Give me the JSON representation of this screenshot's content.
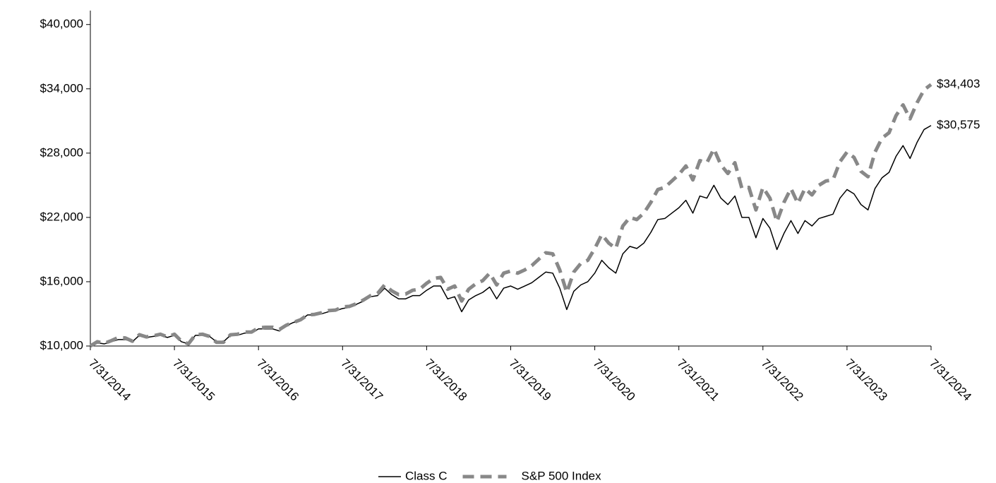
{
  "chart_data": {
    "type": "line",
    "categories": [
      "7/31/2014",
      null,
      null,
      null,
      null,
      null,
      null,
      null,
      null,
      null,
      null,
      null,
      "7/31/2015",
      null,
      null,
      null,
      null,
      null,
      null,
      null,
      null,
      null,
      null,
      null,
      "7/31/2016",
      null,
      null,
      null,
      null,
      null,
      null,
      null,
      null,
      null,
      null,
      null,
      "7/31/2017",
      null,
      null,
      null,
      null,
      null,
      null,
      null,
      null,
      null,
      null,
      null,
      "7/31/2018",
      null,
      null,
      null,
      null,
      null,
      null,
      null,
      null,
      null,
      null,
      null,
      "7/31/2019",
      null,
      null,
      null,
      null,
      null,
      null,
      null,
      null,
      null,
      null,
      null,
      "7/31/2020",
      null,
      null,
      null,
      null,
      null,
      null,
      null,
      null,
      null,
      null,
      null,
      "7/31/2021",
      null,
      null,
      null,
      null,
      null,
      null,
      null,
      null,
      null,
      null,
      null,
      "7/31/2022",
      null,
      null,
      null,
      null,
      null,
      null,
      null,
      null,
      null,
      null,
      null,
      "7/31/2023",
      null,
      null,
      null,
      null,
      null,
      null,
      null,
      null,
      null,
      null,
      null,
      "7/31/2024"
    ],
    "series": [
      {
        "name": "Class C",
        "color": "#000000",
        "dashed": false,
        "values": [
          10000,
          10300,
          10200,
          10400,
          10600,
          10600,
          10400,
          11000,
          10800,
          10900,
          11000,
          10800,
          11000,
          10400,
          10200,
          11000,
          11000,
          10900,
          10400,
          10400,
          11000,
          11000,
          11200,
          11200,
          11600,
          11600,
          11600,
          11400,
          11900,
          12200,
          12400,
          12900,
          12900,
          13000,
          13200,
          13300,
          13500,
          13600,
          13900,
          14200,
          14600,
          14700,
          15400,
          14800,
          14400,
          14400,
          14700,
          14700,
          15200,
          15600,
          15600,
          14400,
          14600,
          13200,
          14300,
          14700,
          15000,
          15500,
          14400,
          15400,
          15600,
          15300,
          15600,
          15900,
          16400,
          16900,
          16800,
          15400,
          13400,
          15100,
          15700,
          16000,
          16800,
          18000,
          17300,
          16800,
          18600,
          19300,
          19100,
          19600,
          20600,
          21800,
          21900,
          22400,
          22900,
          23600,
          22400,
          24000,
          23800,
          25000,
          23800,
          23200,
          24000,
          22000,
          22000,
          20100,
          21900,
          21000,
          19000,
          20500,
          21700,
          20500,
          21700,
          21200,
          21900,
          22100,
          22300,
          23800,
          24600,
          24200,
          23200,
          22700,
          24700,
          25700,
          26200,
          27700,
          28700,
          27500,
          29000,
          30200,
          30575
        ],
        "value_labels": [
          null,
          null,
          null,
          null,
          null,
          null,
          null,
          null,
          null,
          null,
          null,
          null,
          null,
          null,
          null,
          null,
          null,
          null,
          null,
          null,
          null,
          null,
          null,
          null,
          null,
          null,
          null,
          null,
          null,
          null,
          null,
          null,
          null,
          null,
          null,
          null,
          null,
          null,
          null,
          null,
          null,
          null,
          null,
          null,
          null,
          null,
          null,
          null,
          null,
          null,
          null,
          null,
          null,
          null,
          null,
          null,
          null,
          null,
          null,
          null,
          null,
          null,
          null,
          null,
          null,
          null,
          null,
          null,
          null,
          null,
          null,
          null,
          null,
          null,
          null,
          null,
          null,
          null,
          null,
          null,
          null,
          null,
          null,
          null,
          null,
          null,
          null,
          null,
          null,
          null,
          null,
          null,
          null,
          null,
          null,
          null,
          null,
          null,
          null,
          null,
          null,
          null,
          null,
          null,
          null,
          null,
          null,
          null,
          null,
          null,
          null,
          null,
          null,
          null,
          null,
          null,
          null,
          null,
          null,
          null,
          "$30,575"
        ]
      },
      {
        "name": "S&P 500 Index",
        "color": "#888888",
        "dashed": true,
        "values": [
          10000,
          10400,
          10250,
          10500,
          10800,
          10750,
          10450,
          11050,
          10850,
          10950,
          11100,
          10850,
          11100,
          10450,
          10200,
          11050,
          11100,
          10900,
          10350,
          10350,
          11050,
          11100,
          11300,
          11300,
          11700,
          11750,
          11750,
          11550,
          11950,
          12200,
          12450,
          12900,
          12950,
          13100,
          13300,
          13350,
          13650,
          13700,
          13950,
          14300,
          14700,
          14900,
          15700,
          15150,
          14800,
          14850,
          15200,
          15300,
          15850,
          16300,
          16400,
          15300,
          15600,
          14200,
          15300,
          15800,
          16100,
          16800,
          15700,
          16800,
          17000,
          16800,
          17100,
          17500,
          18100,
          18700,
          18600,
          17100,
          15000,
          16900,
          17700,
          18000,
          19100,
          20400,
          19600,
          19100,
          21200,
          22000,
          21800,
          22400,
          23400,
          24600,
          24800,
          25400,
          26000,
          26800,
          25500,
          27300,
          27100,
          28400,
          26900,
          26100,
          27100,
          24700,
          24800,
          22700,
          24800,
          23800,
          21600,
          23400,
          24700,
          23300,
          24700,
          24100,
          25000,
          25400,
          25500,
          27200,
          28100,
          27600,
          26300,
          25800,
          28100,
          29400,
          29900,
          31500,
          32500,
          31200,
          32700,
          33900,
          34403
        ],
        "value_labels": [
          null,
          null,
          null,
          null,
          null,
          null,
          null,
          null,
          null,
          null,
          null,
          null,
          null,
          null,
          null,
          null,
          null,
          null,
          null,
          null,
          null,
          null,
          null,
          null,
          null,
          null,
          null,
          null,
          null,
          null,
          null,
          null,
          null,
          null,
          null,
          null,
          null,
          null,
          null,
          null,
          null,
          null,
          null,
          null,
          null,
          null,
          null,
          null,
          null,
          null,
          null,
          null,
          null,
          null,
          null,
          null,
          null,
          null,
          null,
          null,
          null,
          null,
          null,
          null,
          null,
          null,
          null,
          null,
          null,
          null,
          null,
          null,
          null,
          null,
          null,
          null,
          null,
          null,
          null,
          null,
          null,
          null,
          null,
          null,
          null,
          null,
          null,
          null,
          null,
          null,
          null,
          null,
          null,
          null,
          null,
          null,
          null,
          null,
          null,
          null,
          null,
          null,
          null,
          null,
          null,
          null,
          null,
          null,
          null,
          null,
          null,
          null,
          null,
          null,
          null,
          null,
          null,
          null,
          null,
          null,
          "$34,403"
        ]
      }
    ],
    "ylim": [
      10000,
      41300
    ],
    "yticks": [
      {
        "value": 10000,
        "label": "$10,000"
      },
      {
        "value": 16000,
        "label": "$16,000"
      },
      {
        "value": 22000,
        "label": "$22,000"
      },
      {
        "value": 28000,
        "label": "$28,000"
      },
      {
        "value": 34000,
        "label": "$34,000"
      },
      {
        "value": 40000,
        "label": "$40,000"
      }
    ],
    "grid": false,
    "legend": "bottom"
  }
}
